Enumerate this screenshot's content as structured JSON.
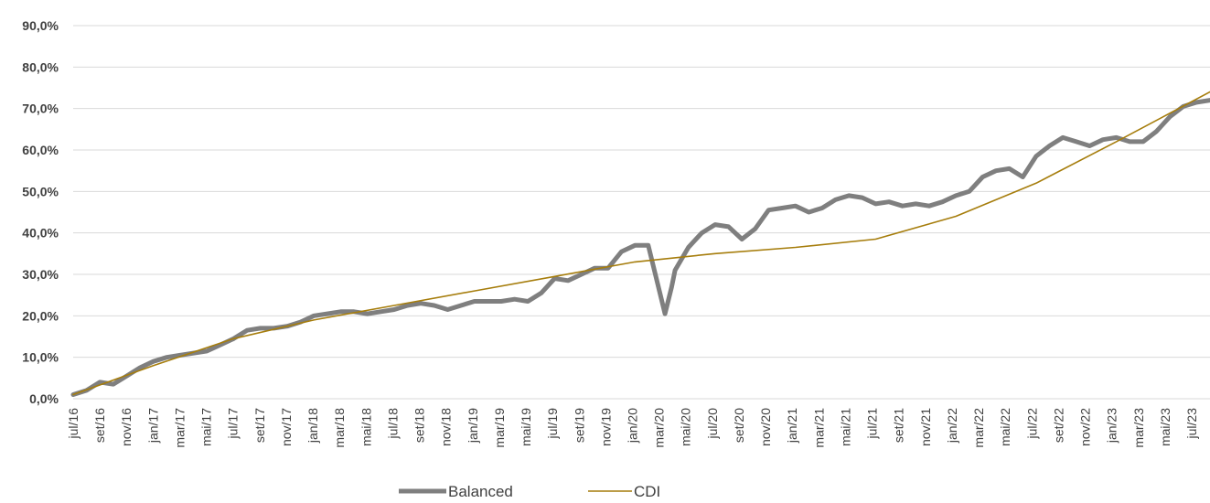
{
  "chart_data": {
    "type": "line",
    "title": "",
    "xlabel": "",
    "ylabel": "",
    "ylim": [
      0,
      90
    ],
    "grid": true,
    "legend_position": "bottom",
    "y_ticks": [
      "0,0%",
      "10,0%",
      "20,0%",
      "30,0%",
      "40,0%",
      "50,0%",
      "60,0%",
      "70,0%",
      "80,0%",
      "90,0%"
    ],
    "x_ticks": [
      "jul/16",
      "set/16",
      "nov/16",
      "jan/17",
      "mar/17",
      "mai/17",
      "jul/17",
      "set/17",
      "nov/17",
      "jan/18",
      "mar/18",
      "mai/18",
      "jul/18",
      "set/18",
      "nov/18",
      "jan/19",
      "mar/19",
      "mai/19",
      "jul/19",
      "set/19",
      "nov/19",
      "jan/20",
      "mar/20",
      "mai/20",
      "jul/20",
      "set/20",
      "nov/20",
      "jan/21",
      "mar/21",
      "mai/21",
      "jul/21",
      "set/21",
      "nov/21",
      "jan/22",
      "mar/22",
      "mai/22",
      "jul/22",
      "set/22",
      "nov/22",
      "jan/23",
      "mar/23",
      "mai/23",
      "jul/23"
    ],
    "x_range": [
      "2016-07",
      "2023-08"
    ],
    "series": [
      {
        "name": "Balanced",
        "color": "#7f7f7f",
        "x": [
          "2016-07",
          "2016-08",
          "2016-09",
          "2016-10",
          "2016-11",
          "2016-12",
          "2017-01",
          "2017-02",
          "2017-03",
          "2017-04",
          "2017-05",
          "2017-06",
          "2017-07",
          "2017-08",
          "2017-09",
          "2017-10",
          "2017-11",
          "2017-12",
          "2018-01",
          "2018-02",
          "2018-03",
          "2018-04",
          "2018-05",
          "2018-06",
          "2018-07",
          "2018-08",
          "2018-09",
          "2018-10",
          "2018-11",
          "2018-12",
          "2019-01",
          "2019-02",
          "2019-03",
          "2019-04",
          "2019-05",
          "2019-06",
          "2019-07",
          "2019-08",
          "2019-09",
          "2019-10",
          "2019-11",
          "2019-12",
          "2020-01",
          "2020-02",
          "2020-03",
          "2020-03",
          "2020-04",
          "2020-05",
          "2020-06",
          "2020-07",
          "2020-08",
          "2020-09",
          "2020-10",
          "2020-11",
          "2020-12",
          "2021-01",
          "2021-02",
          "2021-03",
          "2021-04",
          "2021-05",
          "2021-06",
          "2021-07",
          "2021-08",
          "2021-09",
          "2021-10",
          "2021-11",
          "2021-12",
          "2022-01",
          "2022-02",
          "2022-03",
          "2022-04",
          "2022-05",
          "2022-06",
          "2022-07",
          "2022-08",
          "2022-09",
          "2022-10",
          "2022-11",
          "2022-12",
          "2023-01",
          "2023-02",
          "2023-03",
          "2023-04",
          "2023-05",
          "2023-06",
          "2023-07",
          "2023-08"
        ],
        "values": [
          1.0,
          2.0,
          4.0,
          3.5,
          5.5,
          7.5,
          9.0,
          10.0,
          10.5,
          11.0,
          11.5,
          13.0,
          14.5,
          16.5,
          17.0,
          17.0,
          17.5,
          18.5,
          20.0,
          20.5,
          21.0,
          21.0,
          20.5,
          21.0,
          21.5,
          22.5,
          23.0,
          22.5,
          21.5,
          22.5,
          23.5,
          23.5,
          23.5,
          24.0,
          23.5,
          25.5,
          29.0,
          28.5,
          30.0,
          31.5,
          31.5,
          35.5,
          37.0,
          37.0,
          20.5,
          27.0,
          31.0,
          36.5,
          40.0,
          42.0,
          41.5,
          38.5,
          41.0,
          45.5,
          46.0,
          46.5,
          45.0,
          46.0,
          48.0,
          49.0,
          48.5,
          47.0,
          47.5,
          46.5,
          47.0,
          46.5,
          47.5,
          49.0,
          50.0,
          53.5,
          55.0,
          55.5,
          53.5,
          58.5,
          61.0,
          63.0,
          62.0,
          61.0,
          62.5,
          63.0,
          62.0,
          62.0,
          64.5,
          68.0,
          70.5,
          71.5,
          72.0
        ]
      },
      {
        "name": "CDI",
        "color": "#a67d0c",
        "x": [
          "2016-07",
          "2017-01",
          "2017-07",
          "2018-01",
          "2018-07",
          "2019-01",
          "2019-07",
          "2020-01",
          "2020-07",
          "2021-01",
          "2021-07",
          "2022-01",
          "2022-07",
          "2023-01",
          "2023-08"
        ],
        "values": [
          1.0,
          8.0,
          14.5,
          19.0,
          22.5,
          26.0,
          29.5,
          33.0,
          35.0,
          36.5,
          38.5,
          44.0,
          52.0,
          62.0,
          74.0
        ]
      }
    ]
  },
  "legend": {
    "items": [
      {
        "label": "Balanced",
        "color": "#7f7f7f"
      },
      {
        "label": "CDI",
        "color": "#a67d0c"
      }
    ]
  }
}
